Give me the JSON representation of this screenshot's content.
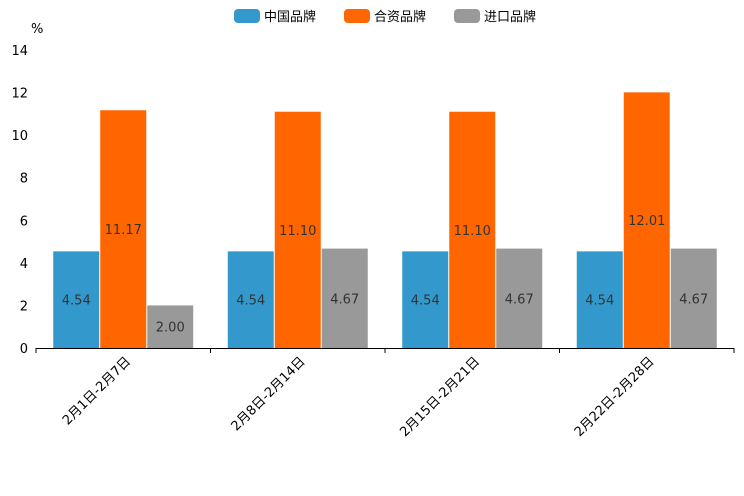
{
  "chart_data": {
    "type": "bar",
    "title": "",
    "xlabel": "",
    "ylabel": "%",
    "ylim": [
      0,
      14
    ],
    "yticks": [
      0,
      2,
      4,
      6,
      8,
      10,
      12,
      14
    ],
    "legend_position": "top-center",
    "grid": false,
    "categories": [
      "2月1日-2月7日",
      "2月8日-2月14日",
      "2月15日-2月21日",
      "2月22日-2月28日"
    ],
    "series": [
      {
        "name": "中国品牌",
        "color": "#3399cc",
        "values": [
          4.54,
          4.54,
          4.54,
          4.54
        ],
        "labels": [
          "4.54",
          "4.54",
          "4.54",
          "4.54"
        ]
      },
      {
        "name": "合资品牌",
        "color": "#ff6600",
        "values": [
          11.17,
          11.1,
          11.1,
          12.01
        ],
        "labels": [
          "11.17",
          "11.10",
          "11.10",
          "12.01"
        ]
      },
      {
        "name": "进口品牌",
        "color": "#999999",
        "values": [
          2.0,
          4.67,
          4.67,
          4.67
        ],
        "labels": [
          "2.00",
          "4.67",
          "4.67",
          "4.67"
        ]
      }
    ]
  }
}
